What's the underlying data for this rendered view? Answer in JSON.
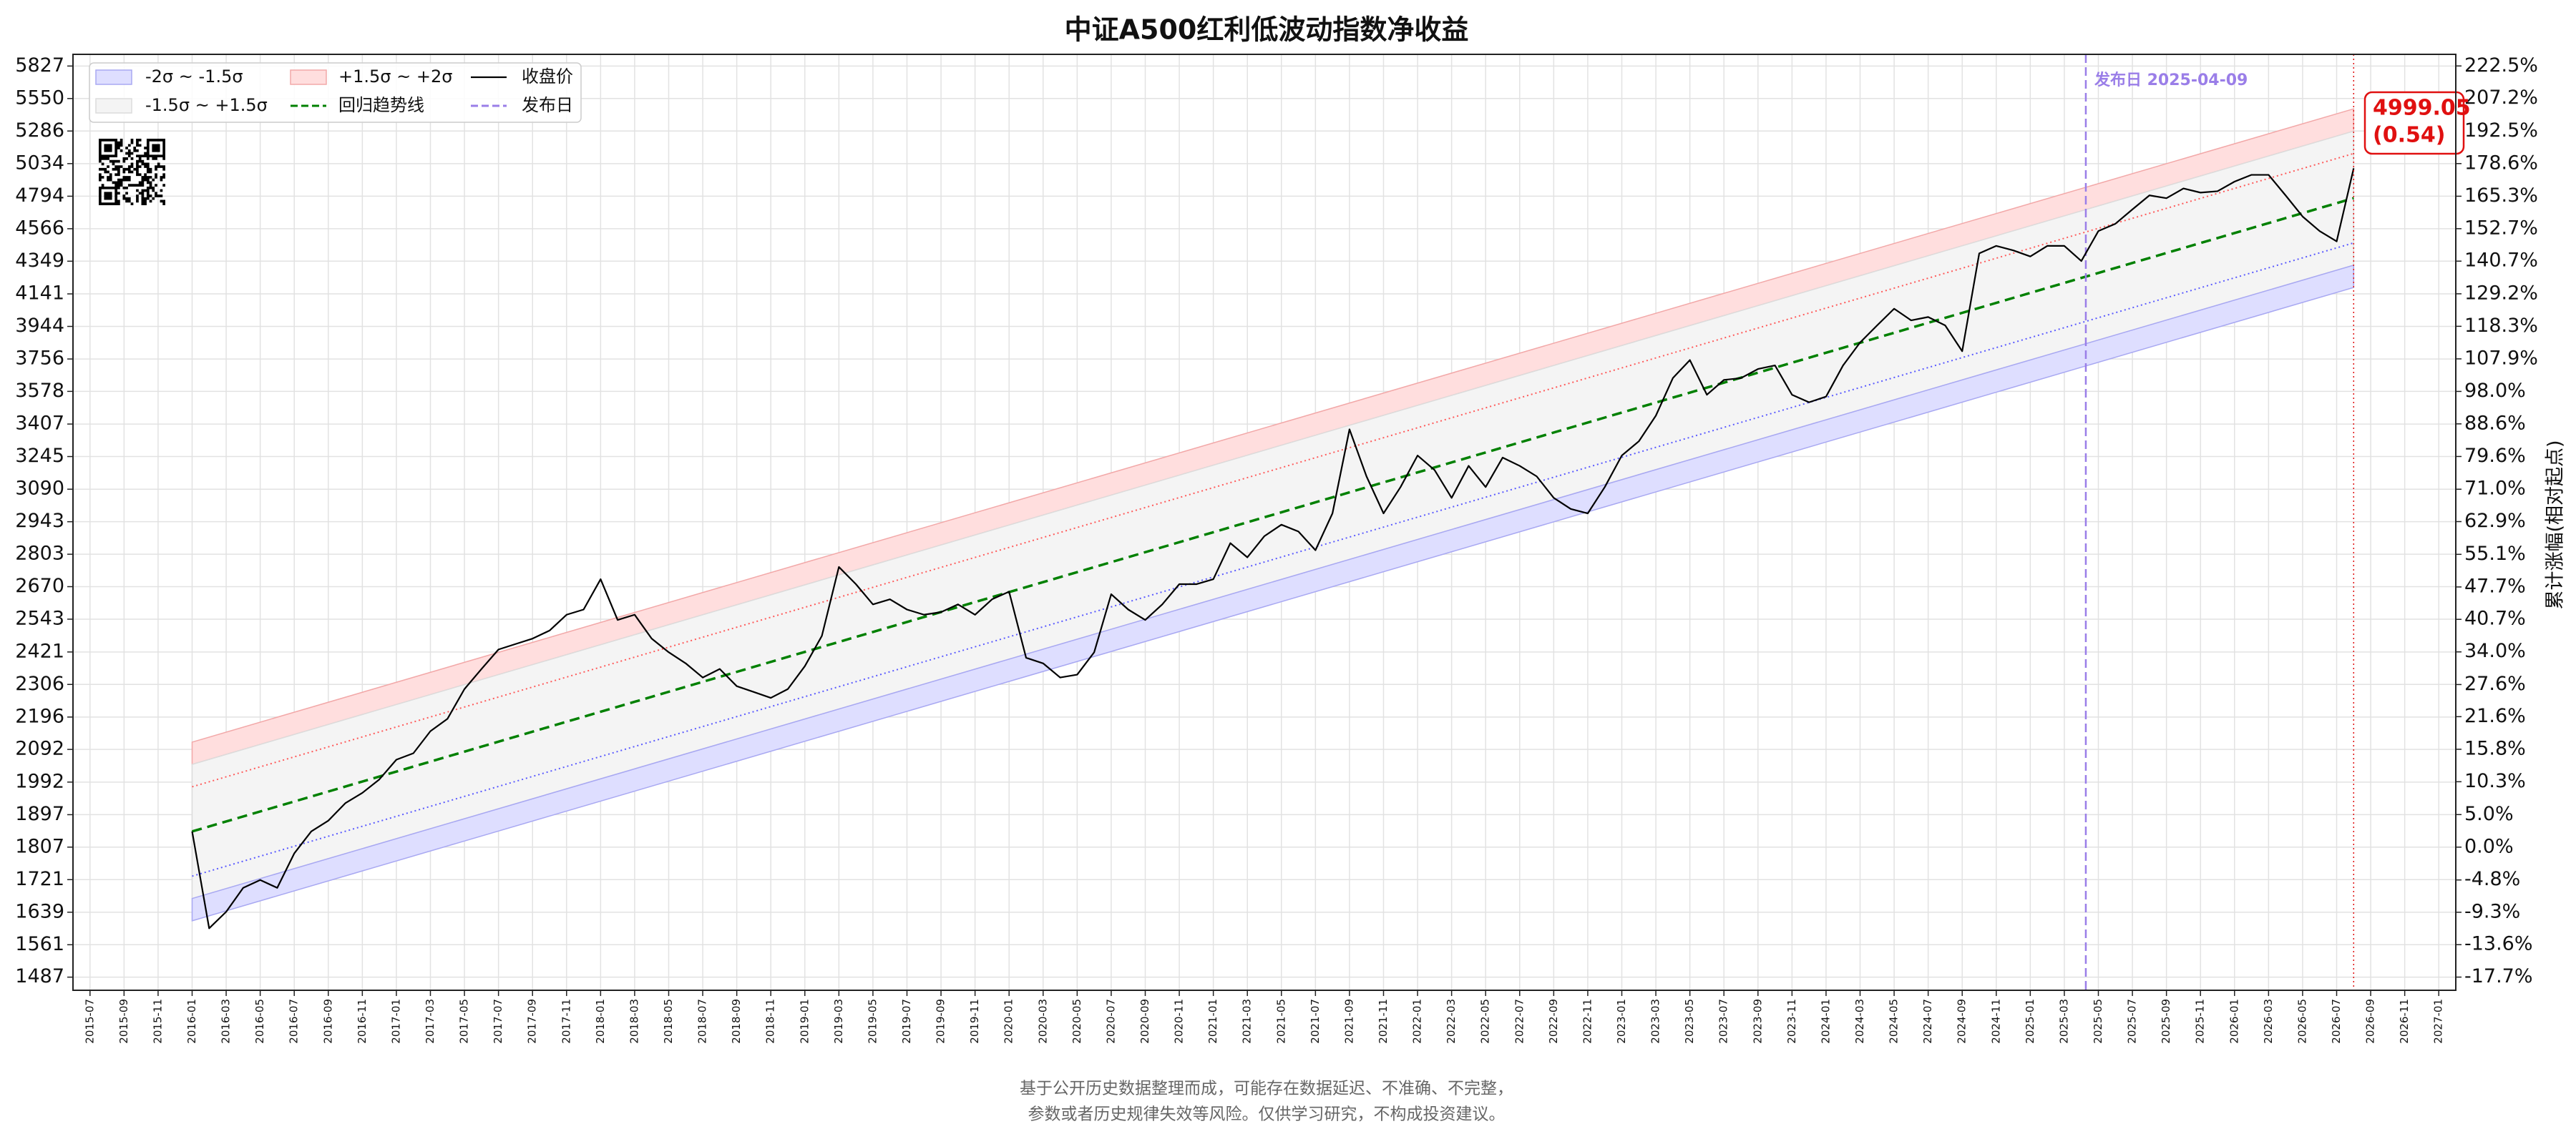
{
  "chart_data": {
    "type": "line",
    "title": "中证A500红利低波动指数净收益",
    "y2_label": "累计涨幅(相对起点)",
    "log_y": true,
    "grid": true,
    "legend": "upper left",
    "xlim": [
      "2015-06",
      "2027-02"
    ],
    "xticks": [
      "2015-07",
      "2015-09",
      "2015-11",
      "2016-01",
      "2016-03",
      "2016-05",
      "2016-07",
      "2016-09",
      "2016-11",
      "2017-01",
      "2017-03",
      "2017-05",
      "2017-07",
      "2017-09",
      "2017-11",
      "2018-01",
      "2018-03",
      "2018-05",
      "2018-07",
      "2018-09",
      "2018-11",
      "2019-01",
      "2019-03",
      "2019-05",
      "2019-07",
      "2019-09",
      "2019-11",
      "2020-01",
      "2020-03",
      "2020-05",
      "2020-07",
      "2020-09",
      "2020-11",
      "2021-01",
      "2021-03",
      "2021-05",
      "2021-07",
      "2021-09",
      "2021-11",
      "2022-01",
      "2022-03",
      "2022-05",
      "2022-07",
      "2022-09",
      "2022-11",
      "2023-01",
      "2023-03",
      "2023-05",
      "2023-07",
      "2023-09",
      "2023-11",
      "2024-01",
      "2024-03",
      "2024-05",
      "2024-07",
      "2024-09",
      "2024-11",
      "2025-01",
      "2025-03",
      "2025-05",
      "2025-07",
      "2025-09",
      "2025-11",
      "2026-01",
      "2026-03",
      "2026-05",
      "2026-07",
      "2026-09",
      "2026-11",
      "2027-01"
    ],
    "ylim": [
      1458,
      5930
    ],
    "yticks": [
      5827,
      5550,
      5286,
      5034,
      4794,
      4566,
      4349,
      4141,
      3944,
      3756,
      3578,
      3407,
      3245,
      3090,
      2943,
      2803,
      2670,
      2543,
      2421,
      2306,
      2196,
      2092,
      1992,
      1897,
      1807,
      1721,
      1639,
      1561,
      1487
    ],
    "y2lim": [
      -19.31,
      228.17
    ],
    "y2ticks": [
      {
        "value": 222.5,
        "label": "222.5%"
      },
      {
        "value": 207.2,
        "label": "207.2%"
      },
      {
        "value": 192.5,
        "label": "192.5%"
      },
      {
        "value": 178.6,
        "label": "178.6%"
      },
      {
        "value": 165.3,
        "label": "165.3%"
      },
      {
        "value": 152.7,
        "label": "152.7%"
      },
      {
        "value": 140.7,
        "label": "140.7%"
      },
      {
        "value": 129.2,
        "label": "129.2%"
      },
      {
        "value": 118.3,
        "label": "118.3%"
      },
      {
        "value": 107.9,
        "label": "107.9%"
      },
      {
        "value": 98.0,
        "label": "98.0%"
      },
      {
        "value": 88.6,
        "label": "88.6%"
      },
      {
        "value": 79.6,
        "label": "79.6%"
      },
      {
        "value": 71.0,
        "label": "71.0%"
      },
      {
        "value": 62.9,
        "label": "62.9%"
      },
      {
        "value": 55.1,
        "label": "55.1%"
      },
      {
        "value": 47.7,
        "label": "47.7%"
      },
      {
        "value": 40.7,
        "label": "40.7%"
      },
      {
        "value": 34.0,
        "label": "34.0%"
      },
      {
        "value": 27.6,
        "label": "27.6%"
      },
      {
        "value": 21.6,
        "label": "21.6%"
      },
      {
        "value": 15.8,
        "label": "15.8%"
      },
      {
        "value": 10.3,
        "label": "10.3%"
      },
      {
        "value": 5.0,
        "label": "5.0%"
      },
      {
        "value": 0.0,
        "label": "0.0%"
      },
      {
        "value": -4.8,
        "label": "-4.8%"
      },
      {
        "value": -9.3,
        "label": "-9.3%"
      },
      {
        "value": -13.6,
        "label": "-13.6%"
      },
      {
        "value": -17.7,
        "label": "-17.7%"
      }
    ],
    "x": [
      "2016-01",
      "2016-02",
      "2016-03",
      "2016-04",
      "2016-05",
      "2016-06",
      "2016-07",
      "2016-08",
      "2016-09",
      "2016-10",
      "2016-11",
      "2016-12",
      "2017-01",
      "2017-02",
      "2017-03",
      "2017-04",
      "2017-05",
      "2017-06",
      "2017-07",
      "2017-08",
      "2017-09",
      "2017-10",
      "2017-11",
      "2017-12",
      "2018-01",
      "2018-02",
      "2018-03",
      "2018-04",
      "2018-05",
      "2018-06",
      "2018-07",
      "2018-08",
      "2018-09",
      "2018-10",
      "2018-11",
      "2018-12",
      "2019-01",
      "2019-02",
      "2019-03",
      "2019-04",
      "2019-05",
      "2019-06",
      "2019-07",
      "2019-08",
      "2019-09",
      "2019-10",
      "2019-11",
      "2019-12",
      "2020-01",
      "2020-02",
      "2020-03",
      "2020-04",
      "2020-05",
      "2020-06",
      "2020-07",
      "2020-08",
      "2020-09",
      "2020-10",
      "2020-11",
      "2020-12",
      "2021-01",
      "2021-02",
      "2021-03",
      "2021-04",
      "2021-05",
      "2021-06",
      "2021-07",
      "2021-08",
      "2021-09",
      "2021-10",
      "2021-11",
      "2021-12",
      "2022-01",
      "2022-02",
      "2022-03",
      "2022-04",
      "2022-05",
      "2022-06",
      "2022-07",
      "2022-08",
      "2022-09",
      "2022-10",
      "2022-11",
      "2022-12",
      "2023-01",
      "2023-02",
      "2023-03",
      "2023-04",
      "2023-05",
      "2023-06",
      "2023-07",
      "2023-08",
      "2023-09",
      "2023-10",
      "2023-11",
      "2023-12",
      "2024-01",
      "2024-02",
      "2024-03",
      "2024-04",
      "2024-05",
      "2024-06",
      "2024-07",
      "2024-08",
      "2024-09",
      "2024-10",
      "2024-11",
      "2024-12",
      "2025-01",
      "2025-02",
      "2025-03",
      "2025-04",
      "2025-05",
      "2025-06",
      "2025-07",
      "2025-08",
      "2025-09",
      "2025-10",
      "2025-11",
      "2025-12",
      "2026-01",
      "2026-02",
      "2026-03",
      "2026-04",
      "2026-05",
      "2026-06",
      "2026-07",
      "2026-08"
    ],
    "series": [
      {
        "name": "收盘价",
        "color": "#000000",
        "values": [
          1850,
          1600,
          1640,
          1700,
          1720,
          1700,
          1790,
          1850,
          1880,
          1930,
          1960,
          2000,
          2060,
          2080,
          2150,
          2190,
          2290,
          2360,
          2430,
          2450,
          2470,
          2500,
          2560,
          2580,
          2700,
          2540,
          2560,
          2470,
          2420,
          2380,
          2330,
          2360,
          2300,
          2280,
          2260,
          2290,
          2370,
          2480,
          2750,
          2680,
          2600,
          2620,
          2580,
          2560,
          2570,
          2600,
          2560,
          2620,
          2650,
          2400,
          2380,
          2330,
          2340,
          2420,
          2640,
          2580,
          2540,
          2600,
          2680,
          2680,
          2700,
          2850,
          2790,
          2880,
          2930,
          2900,
          2820,
          2980,
          3380,
          3150,
          2980,
          3100,
          3250,
          3180,
          3050,
          3200,
          3100,
          3240,
          3200,
          3150,
          3050,
          3000,
          2980,
          3100,
          3250,
          3320,
          3450,
          3650,
          3750,
          3560,
          3640,
          3650,
          3700,
          3720,
          3560,
          3520,
          3550,
          3720,
          3850,
          3950,
          4050,
          3980,
          4000,
          3950,
          3800,
          4400,
          4450,
          4420,
          4380,
          4450,
          4450,
          4350,
          4550,
          4600,
          4700,
          4800,
          4780,
          4850,
          4820,
          4830,
          4900,
          4950,
          4950,
          4800,
          4650,
          4550,
          4480,
          4999.05
        ]
      }
    ],
    "trend": {
      "name": "回归趋势线",
      "color": "#008000",
      "x": [
        "2016-01",
        "2026-08"
      ],
      "values": [
        1850,
        4780
      ]
    },
    "bands": [
      {
        "name": "+1.5σ ~ +2σ",
        "color": "#ffdede",
        "edge": "#f2a8a8",
        "lower": [
          2045.5,
          5285
        ],
        "upper": [
          2115,
          5465
        ]
      },
      {
        "name": "-1.5σ ~ +1.5σ",
        "color": "#f4f4f4",
        "edge": "#dcdcdc",
        "lower": [
          1673,
          4323
        ],
        "upper": [
          2045.5,
          5285
        ]
      },
      {
        "name": "-2σ ~ -1.5σ",
        "color": "#dedeff",
        "edge": "#a8a8f2",
        "lower": [
          1618,
          4181
        ],
        "upper": [
          1673,
          4323
        ]
      }
    ],
    "sigma_lines": [
      {
        "color": "#ff5a5a",
        "values": [
          1978,
          5111
        ]
      },
      {
        "color": "#5a5aff",
        "values": [
          1730,
          4470
        ]
      }
    ],
    "release": {
      "name": "发布日",
      "label": "发布日 2025-04-09",
      "x": "2025-04-09",
      "color": "#9a7ee8"
    },
    "last_z": {
      "value": 0.54,
      "label": "(0.54)"
    },
    "annotation_color": "#e01010",
    "footer": [
      "基于公开历史数据整理而成，可能存在数据延迟、不准确、不完整，",
      "参数或者历史规律失效等风险。仅供学习研究，不构成投资建议。"
    ]
  }
}
